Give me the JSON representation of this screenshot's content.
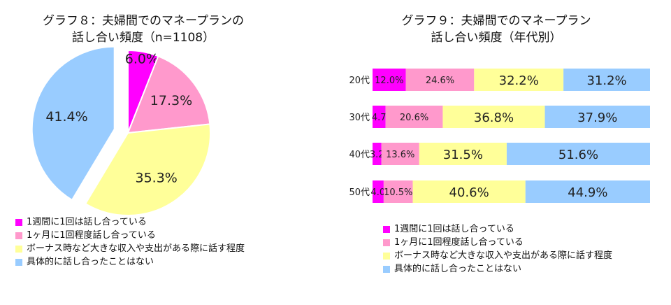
{
  "colors": {
    "weekly": "#ff00ff",
    "monthly": "#ff99cc",
    "bonus": "#ffff99",
    "none": "#99ccff"
  },
  "legend": [
    {
      "key": "weekly",
      "label": "1週間に1回は話し合っている"
    },
    {
      "key": "monthly",
      "label": "1ヶ月に1回程度話し合っている"
    },
    {
      "key": "bonus",
      "label": "ボーナス時など大きな収入や支出がある際に話す程度"
    },
    {
      "key": "none",
      "label": "具体的に話し合ったことはない"
    }
  ],
  "chart_data": [
    {
      "type": "pie",
      "title_line1": "グラフ８：夫婦間でのマネープランの",
      "title_line2": "話し合い頻度（n=1108）",
      "slices": [
        {
          "key": "weekly",
          "value": 6.0,
          "label": "6.0%"
        },
        {
          "key": "monthly",
          "value": 17.3,
          "label": "17.3%"
        },
        {
          "key": "bonus",
          "value": 35.3,
          "label": "35.3%"
        },
        {
          "key": "none",
          "value": 41.4,
          "label": "41.4%"
        }
      ]
    },
    {
      "type": "bar",
      "orientation": "horizontal-stacked-100",
      "title_line1": "グラフ９：夫婦間でのマネープラン",
      "title_line2": "話し合い頻度（年代別）",
      "categories": [
        "20代",
        "30代",
        "40代",
        "50代"
      ],
      "series": [
        {
          "key": "weekly",
          "values": [
            12.0,
            4.7,
            3.2,
            4.0
          ],
          "labels": [
            "12.0%",
            "4.7%",
            "3.2%",
            "4.0%"
          ]
        },
        {
          "key": "monthly",
          "values": [
            24.6,
            20.6,
            13.6,
            10.5
          ],
          "labels": [
            "24.6%",
            "20.6%",
            "13.6%",
            "10.5%"
          ]
        },
        {
          "key": "bonus",
          "values": [
            32.2,
            36.8,
            31.5,
            40.6
          ],
          "labels": [
            "32.2%",
            "36.8%",
            "31.5%",
            "40.6%"
          ]
        },
        {
          "key": "none",
          "values": [
            31.2,
            37.9,
            51.6,
            44.9
          ],
          "labels": [
            "31.2%",
            "37.9%",
            "51.6%",
            "44.9%"
          ]
        }
      ]
    }
  ]
}
